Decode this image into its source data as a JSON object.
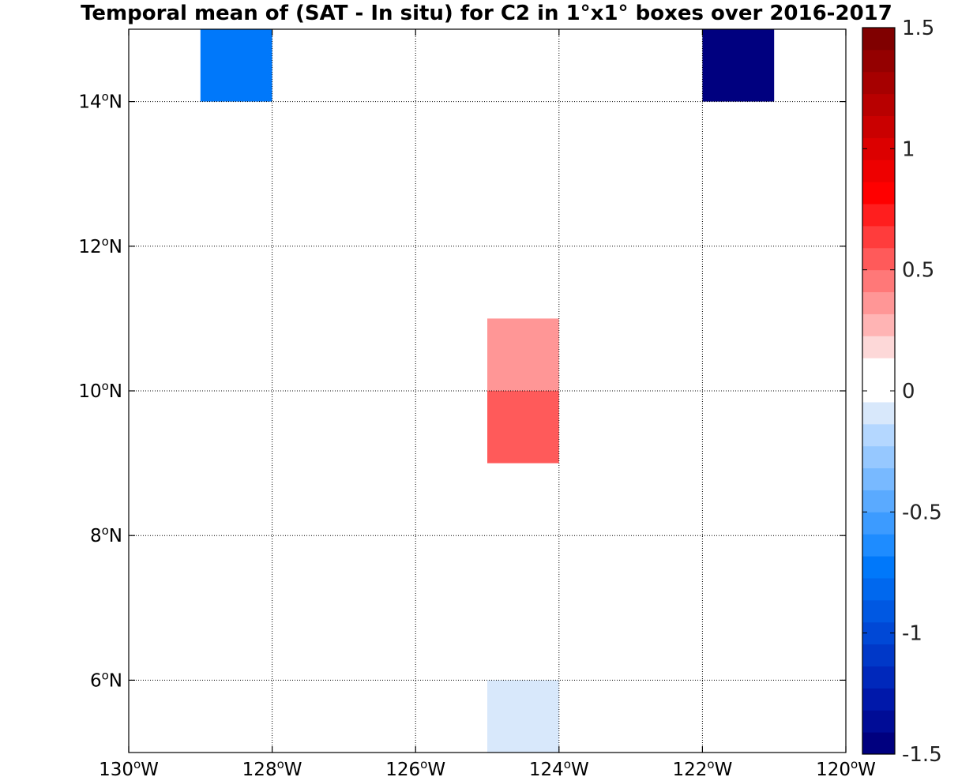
{
  "chart_data": {
    "type": "heatmap",
    "title": "Temporal mean of (SAT - In situ) for C2 in 1°x1° boxes over 2016-2017",
    "x_range": [
      -130,
      -120
    ],
    "y_range": [
      5,
      15
    ],
    "grid": true,
    "x_ticks": [
      {
        "value": -130,
        "label": "130",
        "sup": "o",
        "suffix": "W"
      },
      {
        "value": -128,
        "label": "128",
        "sup": "o",
        "suffix": "W"
      },
      {
        "value": -126,
        "label": "126",
        "sup": "o",
        "suffix": "W"
      },
      {
        "value": -124,
        "label": "124",
        "sup": "o",
        "suffix": "W"
      },
      {
        "value": -122,
        "label": "122",
        "sup": "o",
        "suffix": "W"
      },
      {
        "value": -120,
        "label": "120",
        "sup": "o",
        "suffix": "W"
      }
    ],
    "y_ticks": [
      {
        "value": 6,
        "label": "6",
        "sup": "o",
        "suffix": "N"
      },
      {
        "value": 8,
        "label": "8",
        "sup": "o",
        "suffix": "N"
      },
      {
        "value": 10,
        "label": "10",
        "sup": "o",
        "suffix": "N"
      },
      {
        "value": 12,
        "label": "12",
        "sup": "o",
        "suffix": "N"
      },
      {
        "value": 14,
        "label": "14",
        "sup": "o",
        "suffix": "N"
      }
    ],
    "cells": [
      {
        "lon": [
          -129,
          -128
        ],
        "lat": [
          14,
          15
        ],
        "value": -0.75
      },
      {
        "lon": [
          -122,
          -121
        ],
        "lat": [
          14,
          15
        ],
        "value": -1.5
      },
      {
        "lon": [
          -124,
          -123
        ],
        "lat": [
          13,
          14
        ],
        "value": 0.1
      },
      {
        "lon": [
          -124,
          -123
        ],
        "lat": [
          12,
          13
        ],
        "value": 0.1
      },
      {
        "lon": [
          -125,
          -124
        ],
        "lat": [
          10,
          11
        ],
        "value": 0.4
      },
      {
        "lon": [
          -125,
          -124
        ],
        "lat": [
          9,
          10
        ],
        "value": 0.55
      },
      {
        "lon": [
          -125,
          -124
        ],
        "lat": [
          7,
          8
        ],
        "value": 0.1
      },
      {
        "lon": [
          -125,
          -124
        ],
        "lat": [
          5,
          6
        ],
        "value": -0.1
      }
    ],
    "colorbar": {
      "range": [
        -1.5,
        1.5
      ],
      "ticks": [
        "1.5",
        "1",
        "0.5",
        "0",
        "-0.5",
        "-1",
        "-1.5"
      ],
      "tick_values": [
        1.5,
        1,
        0.5,
        0,
        -0.5,
        -1,
        -1.5
      ],
      "colors_bottom_to_top": [
        "#00007f",
        "#000c96",
        "#0018aa",
        "#0028bb",
        "#0038c8",
        "#0048d6",
        "#0058e2",
        "#0068ee",
        "#0078fa",
        "#1e8cff",
        "#3c9bff",
        "#5aaaff",
        "#78b9ff",
        "#96c8ff",
        "#b4d7ff",
        "#d8e8fb",
        "#ffffff",
        "#ffffff",
        "#fdd8d8",
        "#ffb4b4",
        "#ff9696",
        "#ff7878",
        "#ff5a5a",
        "#ff3c3c",
        "#ff1e1e",
        "#ff0000",
        "#ee0000",
        "#dc0000",
        "#ca0000",
        "#b80000",
        "#a60000",
        "#940000",
        "#800000"
      ]
    }
  }
}
